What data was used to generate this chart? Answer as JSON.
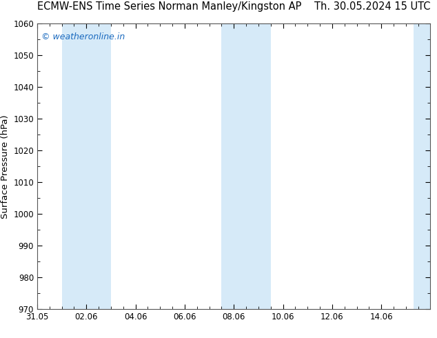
{
  "title_left": "ECMW-ENS Time Series Norman Manley/Kingston AP",
  "title_right": "Th. 30.05.2024 15 UTC",
  "ylabel": "Surface Pressure (hPa)",
  "ylim": [
    970,
    1060
  ],
  "yticks": [
    970,
    980,
    990,
    1000,
    1010,
    1020,
    1030,
    1040,
    1050,
    1060
  ],
  "xlim_start": 0,
  "xlim_end": 16,
  "xtick_positions": [
    0,
    2,
    4,
    6,
    8,
    10,
    12,
    14
  ],
  "xtick_labels": [
    "31.05",
    "02.06",
    "04.06",
    "06.06",
    "08.06",
    "10.06",
    "12.06",
    "14.06"
  ],
  "shaded_bands": [
    {
      "x_start": 1.0,
      "x_end": 3.0
    },
    {
      "x_start": 7.5,
      "x_end": 9.5
    },
    {
      "x_start": 15.3,
      "x_end": 16.0
    }
  ],
  "shade_color": "#d6eaf8",
  "background_color": "#ffffff",
  "watermark_text": "© weatheronline.in",
  "watermark_color": "#1a6abf",
  "title_color": "#000000",
  "tick_color": "#000000",
  "spine_color": "#555555",
  "title_fontsize": 10.5,
  "label_fontsize": 9.5,
  "tick_fontsize": 8.5,
  "watermark_fontsize": 9
}
